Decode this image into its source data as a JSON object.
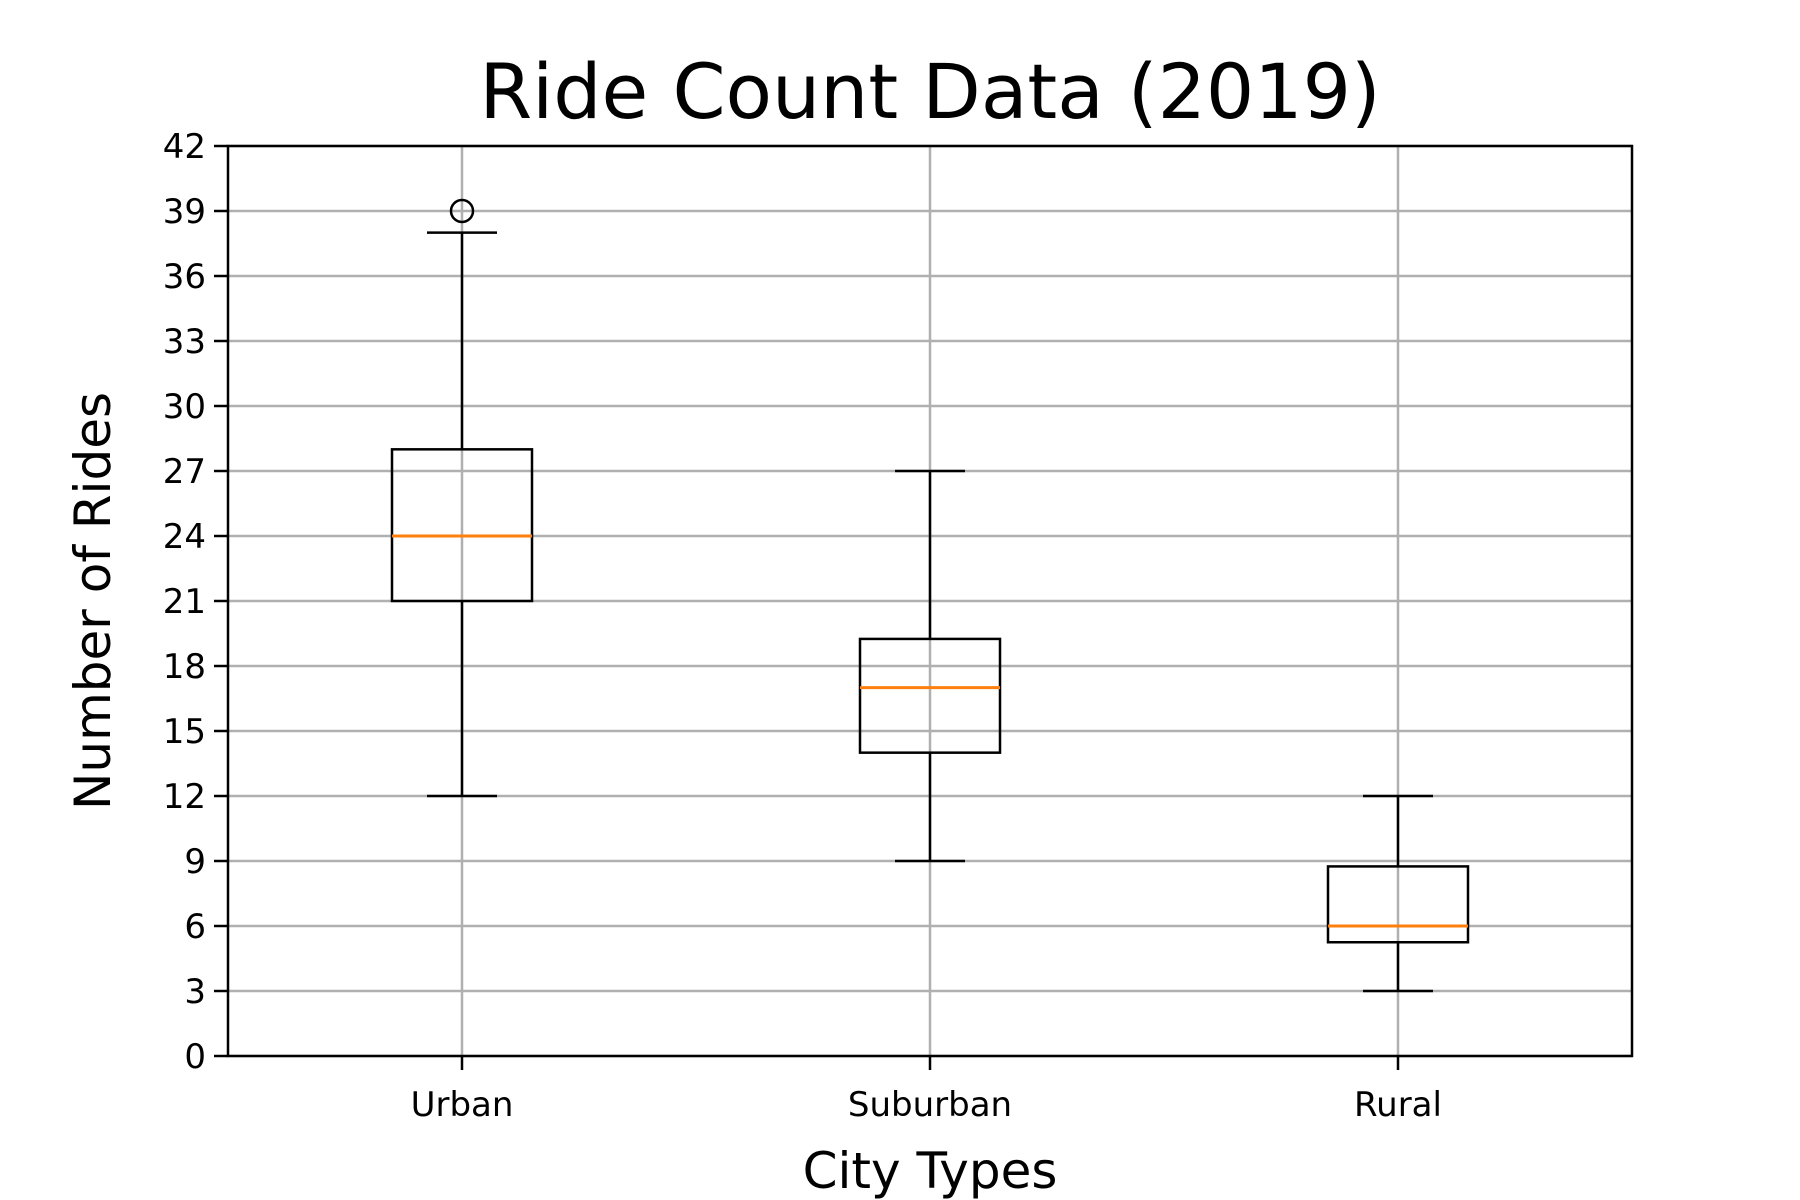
{
  "chart_data": {
    "type": "box",
    "title": "Ride Count Data (2019)",
    "xlabel": "City Types",
    "ylabel": "Number of Rides",
    "ylim": [
      0,
      42
    ],
    "yticks": [
      0,
      3,
      6,
      9,
      12,
      15,
      18,
      21,
      24,
      27,
      30,
      33,
      36,
      39,
      42
    ],
    "grid": true,
    "categories": [
      "Urban",
      "Suburban",
      "Rural"
    ],
    "boxes": [
      {
        "category": "Urban",
        "whisker_low": 12,
        "q1": 21,
        "median": 24,
        "q3": 28,
        "whisker_high": 38,
        "outliers": [
          39
        ]
      },
      {
        "category": "Suburban",
        "whisker_low": 9,
        "q1": 14,
        "median": 17,
        "q3": 19.25,
        "whisker_high": 27,
        "outliers": []
      },
      {
        "category": "Rural",
        "whisker_low": 3,
        "q1": 5.25,
        "median": 6,
        "q3": 8.75,
        "whisker_high": 12,
        "outliers": []
      }
    ],
    "colors": {
      "box": "#000000",
      "median": "#ff7f0e",
      "grid": "#b0b0b0"
    }
  }
}
